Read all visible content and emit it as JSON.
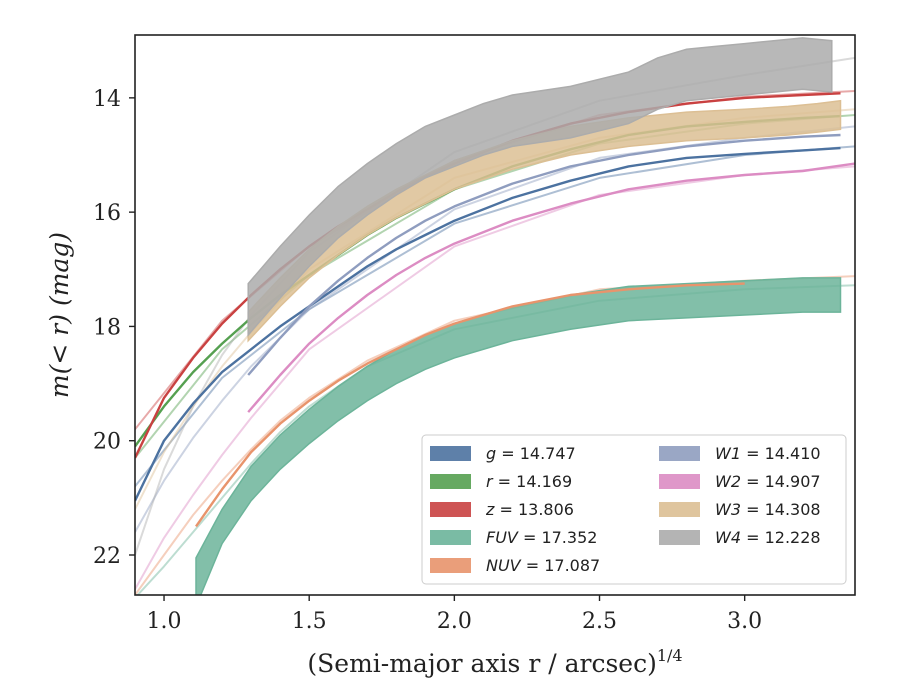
{
  "chart_data": {
    "type": "line",
    "xlabel": "(Semi-major axis r / arcsec)",
    "xlabel_sup": "1/4",
    "ylabel": "m(< r) (mag)",
    "xlim": [
      0.9,
      3.38
    ],
    "ylim": [
      22.7,
      12.9
    ],
    "y_inverted": true,
    "xticks": [
      "1.0",
      "1.5",
      "2.0",
      "2.5",
      "3.0"
    ],
    "xtick_values": [
      1.0,
      1.5,
      2.0,
      2.5,
      3.0
    ],
    "yticks": [
      "14",
      "16",
      "18",
      "20",
      "22"
    ],
    "ytick_values": [
      14,
      16,
      18,
      20,
      22
    ],
    "legend_position": "lower-right",
    "legend": [
      {
        "name": "g",
        "value": "14.747",
        "color": "#4c72a0"
      },
      {
        "name": "r",
        "value": "14.169",
        "color": "#55a050"
      },
      {
        "name": "z",
        "value": "13.806",
        "color": "#c94141"
      },
      {
        "name": "FUV",
        "value": "17.352",
        "color": "#6cb49a"
      },
      {
        "name": "NUV",
        "value": "17.087",
        "color": "#e8946c"
      },
      {
        "name": "W1",
        "value": "14.410",
        "color": "#8f9dbf"
      },
      {
        "name": "W2",
        "value": "14.907",
        "color": "#dc8cc3"
      },
      {
        "name": "W3",
        "value": "14.308",
        "color": "#dcbf94"
      },
      {
        "name": "W4",
        "value": "12.228",
        "color": "#acacac"
      }
    ],
    "series": [
      {
        "name": "g",
        "color": "#4c72a0",
        "band": false,
        "data": [
          [
            0.9,
            21.05
          ],
          [
            1.0,
            20.0
          ],
          [
            1.1,
            19.35
          ],
          [
            1.2,
            18.8
          ],
          [
            1.3,
            18.4
          ],
          [
            1.4,
            18.0
          ],
          [
            1.5,
            17.65
          ],
          [
            1.6,
            17.3
          ],
          [
            1.7,
            16.95
          ],
          [
            1.8,
            16.65
          ],
          [
            1.9,
            16.4
          ],
          [
            2.0,
            16.15
          ],
          [
            2.2,
            15.75
          ],
          [
            2.4,
            15.45
          ],
          [
            2.6,
            15.2
          ],
          [
            2.8,
            15.05
          ],
          [
            3.0,
            14.98
          ],
          [
            3.2,
            14.92
          ],
          [
            3.33,
            14.88
          ]
        ],
        "model": [
          [
            0.9,
            20.8
          ],
          [
            1.2,
            18.9
          ],
          [
            1.5,
            17.7
          ],
          [
            2.0,
            16.2
          ],
          [
            2.5,
            15.4
          ],
          [
            3.0,
            15.0
          ],
          [
            3.38,
            14.85
          ]
        ]
      },
      {
        "name": "r",
        "color": "#55a050",
        "band": false,
        "data": [
          [
            0.9,
            20.1
          ],
          [
            1.0,
            19.4
          ],
          [
            1.1,
            18.8
          ],
          [
            1.2,
            18.3
          ],
          [
            1.3,
            17.85
          ],
          [
            1.4,
            17.45
          ],
          [
            1.5,
            17.1
          ],
          [
            1.6,
            16.75
          ],
          [
            1.7,
            16.4
          ],
          [
            1.8,
            16.1
          ],
          [
            1.9,
            15.85
          ],
          [
            2.0,
            15.6
          ],
          [
            2.2,
            15.2
          ],
          [
            2.4,
            14.9
          ],
          [
            2.6,
            14.65
          ],
          [
            2.8,
            14.5
          ],
          [
            3.0,
            14.42
          ],
          [
            3.2,
            14.35
          ],
          [
            3.33,
            14.32
          ]
        ],
        "model": [
          [
            0.9,
            20.3
          ],
          [
            1.2,
            18.4
          ],
          [
            1.5,
            17.1
          ],
          [
            2.0,
            15.6
          ],
          [
            2.5,
            14.8
          ],
          [
            3.0,
            14.45
          ],
          [
            3.38,
            14.3
          ]
        ]
      },
      {
        "name": "z",
        "color": "#c94141",
        "band": false,
        "data": [
          [
            0.9,
            20.3
          ],
          [
            1.0,
            19.25
          ],
          [
            1.1,
            18.55
          ],
          [
            1.2,
            17.95
          ],
          [
            1.3,
            17.45
          ],
          [
            1.4,
            17.0
          ],
          [
            1.5,
            16.6
          ],
          [
            1.6,
            16.25
          ],
          [
            1.7,
            15.95
          ],
          [
            1.8,
            15.65
          ],
          [
            1.9,
            15.38
          ],
          [
            2.0,
            15.15
          ],
          [
            2.2,
            14.75
          ],
          [
            2.4,
            14.45
          ],
          [
            2.6,
            14.25
          ],
          [
            2.8,
            14.1
          ],
          [
            3.0,
            14.0
          ],
          [
            3.2,
            13.95
          ],
          [
            3.33,
            13.92
          ]
        ],
        "model": [
          [
            0.9,
            19.8
          ],
          [
            1.2,
            17.9
          ],
          [
            1.5,
            16.6
          ],
          [
            2.0,
            15.1
          ],
          [
            2.5,
            14.3
          ],
          [
            3.0,
            13.98
          ],
          [
            3.38,
            13.88
          ]
        ]
      },
      {
        "name": "FUV",
        "color": "#6cb49a",
        "band": true,
        "band_width": 0.3,
        "data": [
          [
            1.11,
            22.35
          ],
          [
            1.2,
            21.5
          ],
          [
            1.3,
            20.75
          ],
          [
            1.4,
            20.2
          ],
          [
            1.5,
            19.75
          ],
          [
            1.6,
            19.35
          ],
          [
            1.7,
            19.0
          ],
          [
            1.8,
            18.7
          ],
          [
            1.9,
            18.45
          ],
          [
            2.0,
            18.25
          ],
          [
            2.2,
            17.95
          ],
          [
            2.4,
            17.75
          ],
          [
            2.6,
            17.6
          ],
          [
            2.8,
            17.55
          ],
          [
            3.0,
            17.5
          ],
          [
            3.2,
            17.45
          ],
          [
            3.33,
            17.45
          ]
        ],
        "model": [
          [
            0.9,
            22.75
          ],
          [
            1.0,
            22.2
          ],
          [
            1.1,
            21.6
          ],
          [
            1.2,
            21.0
          ],
          [
            1.3,
            20.4
          ],
          [
            1.4,
            19.85
          ],
          [
            1.5,
            19.4
          ],
          [
            1.7,
            18.7
          ],
          [
            2.0,
            18.05
          ],
          [
            2.5,
            17.55
          ],
          [
            3.0,
            17.35
          ],
          [
            3.38,
            17.28
          ]
        ]
      },
      {
        "name": "NUV",
        "color": "#e8946c",
        "band": false,
        "data": [
          [
            1.11,
            21.5
          ],
          [
            1.2,
            20.85
          ],
          [
            1.3,
            20.2
          ],
          [
            1.4,
            19.7
          ],
          [
            1.5,
            19.3
          ],
          [
            1.6,
            18.95
          ],
          [
            1.7,
            18.65
          ],
          [
            1.8,
            18.4
          ],
          [
            1.9,
            18.15
          ],
          [
            2.0,
            17.95
          ],
          [
            2.2,
            17.65
          ],
          [
            2.4,
            17.45
          ],
          [
            2.6,
            17.35
          ],
          [
            2.8,
            17.28
          ],
          [
            3.0,
            17.25
          ]
        ],
        "model": [
          [
            0.9,
            22.7
          ],
          [
            1.0,
            22.0
          ],
          [
            1.1,
            21.3
          ],
          [
            1.2,
            20.7
          ],
          [
            1.3,
            20.15
          ],
          [
            1.4,
            19.65
          ],
          [
            1.5,
            19.25
          ],
          [
            1.7,
            18.6
          ],
          [
            2.0,
            17.9
          ],
          [
            2.5,
            17.35
          ],
          [
            3.0,
            17.2
          ],
          [
            3.38,
            17.12
          ]
        ]
      },
      {
        "name": "W1",
        "color": "#8f9dbf",
        "band": false,
        "data": [
          [
            1.29,
            18.85
          ],
          [
            1.4,
            18.2
          ],
          [
            1.5,
            17.65
          ],
          [
            1.6,
            17.2
          ],
          [
            1.7,
            16.8
          ],
          [
            1.8,
            16.45
          ],
          [
            1.9,
            16.15
          ],
          [
            2.0,
            15.9
          ],
          [
            2.2,
            15.5
          ],
          [
            2.4,
            15.2
          ],
          [
            2.6,
            15.0
          ],
          [
            2.8,
            14.85
          ],
          [
            3.0,
            14.75
          ],
          [
            3.2,
            14.68
          ],
          [
            3.33,
            14.65
          ]
        ],
        "model": [
          [
            0.9,
            21.6
          ],
          [
            1.0,
            20.7
          ],
          [
            1.1,
            19.95
          ],
          [
            1.2,
            19.3
          ],
          [
            1.3,
            18.7
          ],
          [
            1.5,
            17.7
          ],
          [
            2.0,
            15.95
          ],
          [
            2.5,
            15.05
          ],
          [
            3.0,
            14.7
          ],
          [
            3.38,
            14.5
          ]
        ]
      },
      {
        "name": "W2",
        "color": "#dc8cc3",
        "band": false,
        "data": [
          [
            1.29,
            19.5
          ],
          [
            1.4,
            18.85
          ],
          [
            1.5,
            18.3
          ],
          [
            1.6,
            17.85
          ],
          [
            1.7,
            17.45
          ],
          [
            1.8,
            17.1
          ],
          [
            1.9,
            16.8
          ],
          [
            2.0,
            16.55
          ],
          [
            2.2,
            16.15
          ],
          [
            2.4,
            15.85
          ],
          [
            2.6,
            15.6
          ],
          [
            2.8,
            15.45
          ],
          [
            3.0,
            15.35
          ],
          [
            3.2,
            15.28
          ],
          [
            3.38,
            15.15
          ]
        ],
        "model": [
          [
            0.9,
            22.6
          ],
          [
            1.0,
            21.7
          ],
          [
            1.1,
            20.95
          ],
          [
            1.2,
            20.25
          ],
          [
            1.3,
            19.6
          ],
          [
            1.5,
            18.4
          ],
          [
            2.0,
            16.6
          ],
          [
            2.5,
            15.7
          ],
          [
            3.0,
            15.35
          ],
          [
            3.38,
            15.2
          ]
        ]
      },
      {
        "name": "W3",
        "color": "#dcbf94",
        "band": true,
        "band_width": 0.25,
        "data": [
          [
            1.29,
            18.0
          ],
          [
            1.4,
            17.4
          ],
          [
            1.5,
            16.9
          ],
          [
            1.6,
            16.5
          ],
          [
            1.7,
            16.15
          ],
          [
            1.8,
            15.85
          ],
          [
            1.9,
            15.6
          ],
          [
            2.0,
            15.35
          ],
          [
            2.2,
            15.0
          ],
          [
            2.4,
            14.75
          ],
          [
            2.6,
            14.6
          ],
          [
            2.8,
            14.5
          ],
          [
            3.0,
            14.45
          ],
          [
            3.15,
            14.4
          ],
          [
            3.25,
            14.35
          ],
          [
            3.33,
            14.3
          ]
        ],
        "model": [
          [
            0.9,
            21.2
          ],
          [
            1.0,
            20.2
          ],
          [
            1.1,
            19.4
          ],
          [
            1.2,
            18.7
          ],
          [
            1.3,
            18.1
          ],
          [
            1.5,
            17.0
          ],
          [
            2.0,
            15.4
          ],
          [
            2.5,
            14.7
          ],
          [
            3.0,
            14.35
          ],
          [
            3.38,
            14.2
          ]
        ]
      },
      {
        "name": "W4",
        "color": "#acacac",
        "band": true,
        "band_width": 0.45,
        "data": [
          [
            1.29,
            17.7
          ],
          [
            1.4,
            17.05
          ],
          [
            1.5,
            16.5
          ],
          [
            1.6,
            16.0
          ],
          [
            1.7,
            15.6
          ],
          [
            1.8,
            15.25
          ],
          [
            1.9,
            14.95
          ],
          [
            2.0,
            14.75
          ],
          [
            2.1,
            14.55
          ],
          [
            2.2,
            14.4
          ],
          [
            2.4,
            14.25
          ],
          [
            2.6,
            14.0
          ],
          [
            2.7,
            13.75
          ],
          [
            2.8,
            13.6
          ],
          [
            2.9,
            13.55
          ],
          [
            3.0,
            13.5
          ],
          [
            3.1,
            13.45
          ],
          [
            3.2,
            13.4
          ],
          [
            3.3,
            13.45
          ]
        ],
        "model": [
          [
            0.9,
            22.0
          ],
          [
            1.0,
            20.5
          ],
          [
            1.1,
            19.4
          ],
          [
            1.2,
            18.5
          ],
          [
            1.3,
            17.8
          ],
          [
            1.5,
            16.7
          ],
          [
            2.0,
            14.95
          ],
          [
            2.5,
            14.05
          ],
          [
            3.0,
            13.6
          ],
          [
            3.38,
            13.3
          ]
        ]
      }
    ]
  }
}
